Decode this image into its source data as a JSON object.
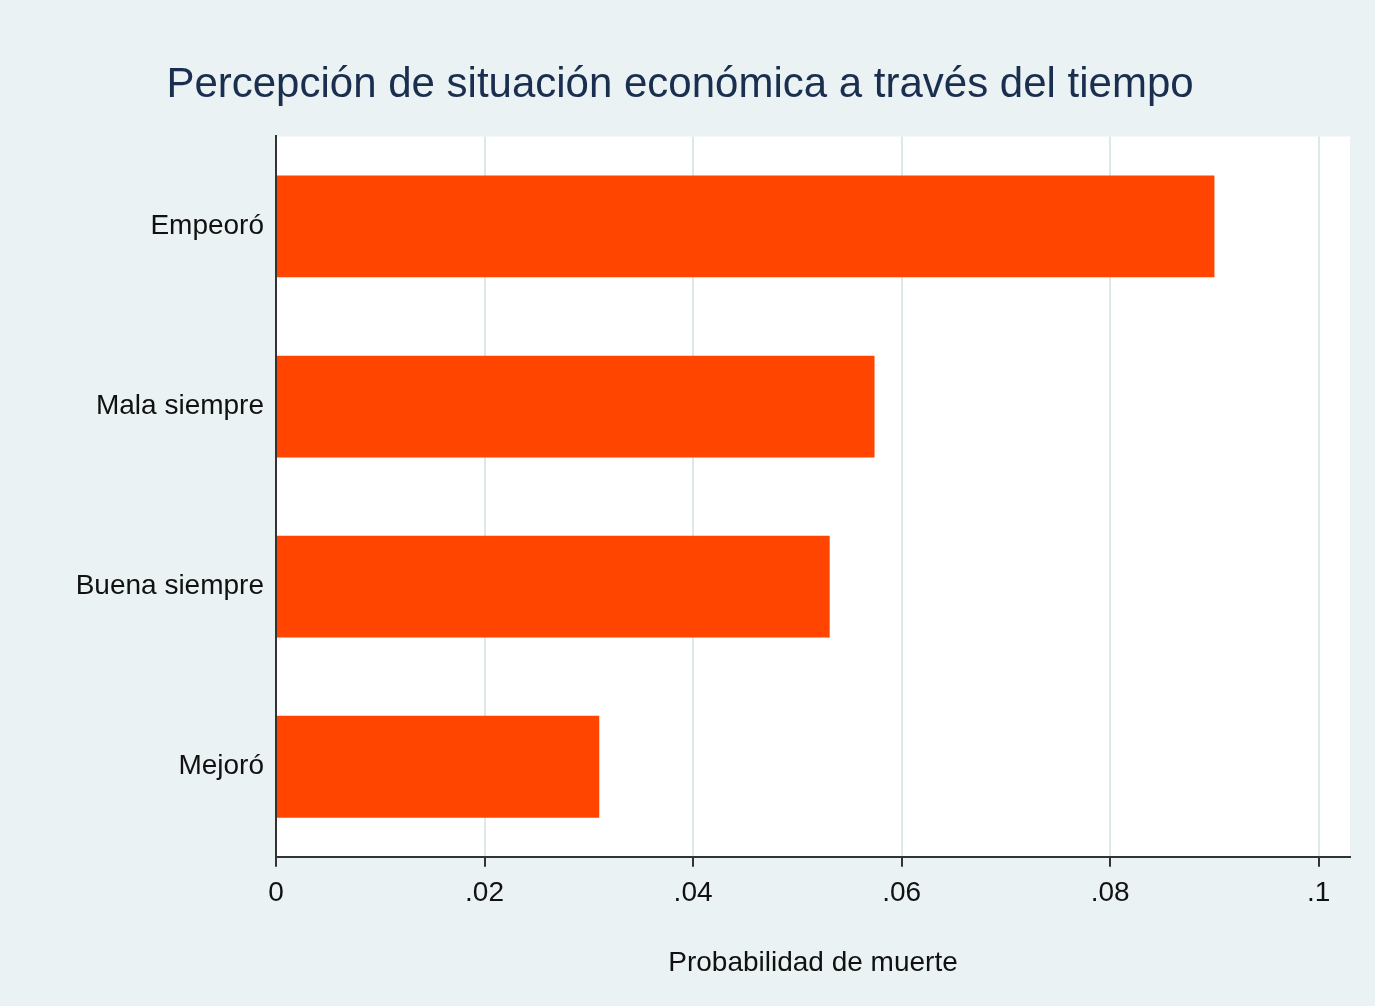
{
  "chart_data": {
    "type": "bar",
    "orientation": "horizontal",
    "title": "Percepción de situación económica a través del tiempo",
    "xlabel": "Probabilidad de muerte",
    "categories": [
      "Empeoró",
      "Mala siempre",
      "Buena siempre",
      "Mejoró"
    ],
    "values": [
      0.09,
      0.0574,
      0.0531,
      0.031
    ],
    "color": "#ff4500",
    "xlim": [
      0,
      0.103
    ],
    "xticks": [
      0,
      {
        "value": 0.02,
        "label": ".02"
      },
      {
        "value": 0.04,
        "label": ".04"
      },
      {
        "value": 0.06,
        "label": ".06"
      },
      {
        "value": 0.08,
        "label": ".08"
      },
      {
        "value": 0.1,
        "label": ".1"
      }
    ],
    "grid": "x",
    "legend": false
  }
}
